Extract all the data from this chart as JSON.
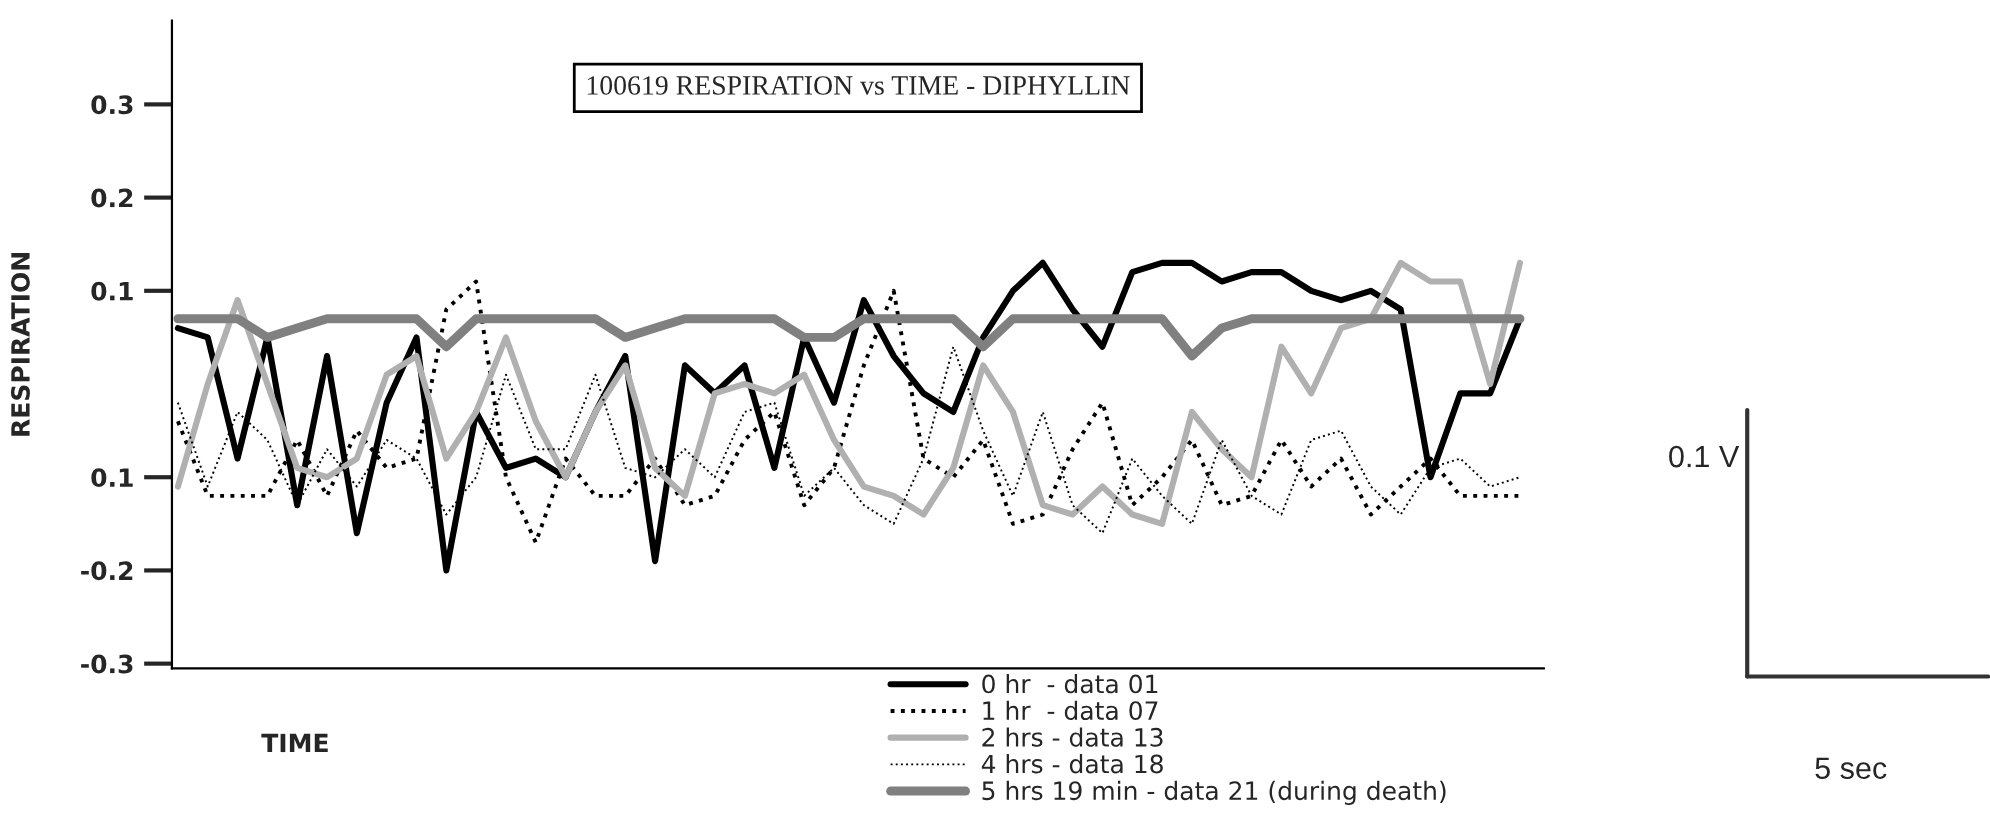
{
  "chart_data": {
    "type": "line",
    "title": "100619 RESPIRATION vs TIME - DIPHYLLIN",
    "xlabel": "TIME",
    "ylabel": "RESPIRATION",
    "categories": [
      null,
      null,
      null,
      null,
      null,
      null,
      null,
      null,
      null,
      null,
      null,
      null,
      null,
      null,
      null,
      null,
      null,
      null,
      null,
      null,
      null,
      null,
      null,
      null,
      null,
      null,
      null,
      null,
      null,
      null,
      null,
      null,
      null,
      null,
      null,
      null,
      null,
      null,
      null,
      null,
      null,
      null,
      null,
      null,
      null,
      null
    ],
    "ylim": [
      -0.305,
      0.39
    ],
    "yticks": [
      0.3,
      0.2,
      0.1,
      {
        "value": -0.1,
        "label": "0.1"
      },
      -0.2,
      -0.3
    ],
    "tick_labels": "y",
    "legend": "bottom",
    "annotations": [
      "0.1 V",
      "5 sec"
    ],
    "series": [
      {
        "name": "0 hr  - data 01",
        "color": "#000000",
        "line_style": "solid",
        "values": [
          0.06,
          0.05,
          -0.08,
          0.05,
          -0.13,
          0.03,
          -0.16,
          -0.02,
          0.05,
          -0.2,
          -0.03,
          -0.09,
          -0.08,
          -0.1,
          -0.03,
          0.03,
          -0.19,
          0.02,
          -0.01,
          0.02,
          -0.09,
          0.05,
          -0.02,
          0.09,
          0.03,
          -0.01,
          -0.03,
          0.05,
          0.1,
          0.13,
          0.08,
          0.04,
          0.12,
          0.13,
          0.13,
          0.11,
          0.12,
          0.12,
          0.1,
          0.09,
          0.1,
          0.08,
          -0.1,
          -0.01,
          -0.01,
          0.07
        ]
      },
      {
        "name": "1 hr  - data 07",
        "color": "#000000",
        "line_style": "dotted",
        "values": [
          -0.04,
          -0.12,
          -0.12,
          -0.12,
          -0.06,
          -0.12,
          -0.05,
          -0.09,
          -0.08,
          0.08,
          0.11,
          -0.1,
          -0.17,
          -0.08,
          -0.12,
          -0.12,
          -0.08,
          -0.13,
          -0.12,
          -0.06,
          -0.03,
          -0.13,
          -0.09,
          0.02,
          0.1,
          -0.08,
          -0.1,
          -0.06,
          -0.15,
          -0.14,
          -0.07,
          -0.02,
          -0.13,
          -0.1,
          -0.06,
          -0.13,
          -0.12,
          -0.06,
          -0.11,
          -0.08,
          -0.14,
          -0.11,
          -0.08,
          -0.12,
          -0.12,
          -0.12
        ]
      },
      {
        "name": "2 hrs - data 13",
        "color": "#b0b0b0",
        "line_style": "solid",
        "values": [
          -0.11,
          0.0,
          0.09,
          0.0,
          -0.09,
          -0.1,
          -0.08,
          0.01,
          0.03,
          -0.08,
          -0.03,
          0.05,
          -0.04,
          -0.1,
          -0.03,
          0.02,
          -0.09,
          -0.12,
          -0.01,
          0.0,
          -0.01,
          0.01,
          -0.06,
          -0.11,
          -0.12,
          -0.14,
          -0.09,
          0.02,
          -0.03,
          -0.13,
          -0.14,
          -0.11,
          -0.14,
          -0.15,
          -0.03,
          -0.07,
          -0.1,
          0.04,
          -0.01,
          0.06,
          0.07,
          0.13,
          0.11,
          0.11,
          0.0,
          0.13
        ]
      },
      {
        "name": "4 hrs - data 18",
        "color": "#000000",
        "line_style": "dotted",
        "values": [
          -0.02,
          -0.11,
          -0.03,
          -0.06,
          -0.13,
          -0.07,
          -0.11,
          -0.06,
          -0.08,
          -0.14,
          -0.1,
          0.01,
          -0.07,
          -0.07,
          0.01,
          -0.09,
          -0.1,
          -0.07,
          -0.1,
          -0.03,
          -0.02,
          -0.12,
          -0.09,
          -0.13,
          -0.15,
          -0.08,
          0.04,
          -0.05,
          -0.12,
          -0.03,
          -0.13,
          -0.16,
          -0.08,
          -0.12,
          -0.15,
          -0.06,
          -0.12,
          -0.14,
          -0.06,
          -0.05,
          -0.11,
          -0.14,
          -0.09,
          -0.08,
          -0.11,
          -0.1
        ]
      },
      {
        "name": "5 hrs 19 min - data 21 (during death)",
        "color": "#808080",
        "line_style": "solid",
        "values": [
          0.07,
          0.07,
          0.07,
          0.05,
          0.06,
          0.07,
          0.07,
          0.07,
          0.07,
          0.04,
          0.07,
          0.07,
          0.07,
          0.07,
          0.07,
          0.05,
          0.06,
          0.07,
          0.07,
          0.07,
          0.07,
          0.05,
          0.05,
          0.07,
          0.07,
          0.07,
          0.07,
          0.04,
          0.07,
          0.07,
          0.07,
          0.07,
          0.07,
          0.07,
          0.03,
          0.06,
          0.07,
          0.07,
          0.07,
          0.07,
          0.07,
          0.07,
          0.07,
          0.07,
          0.07,
          0.07
        ]
      }
    ]
  }
}
